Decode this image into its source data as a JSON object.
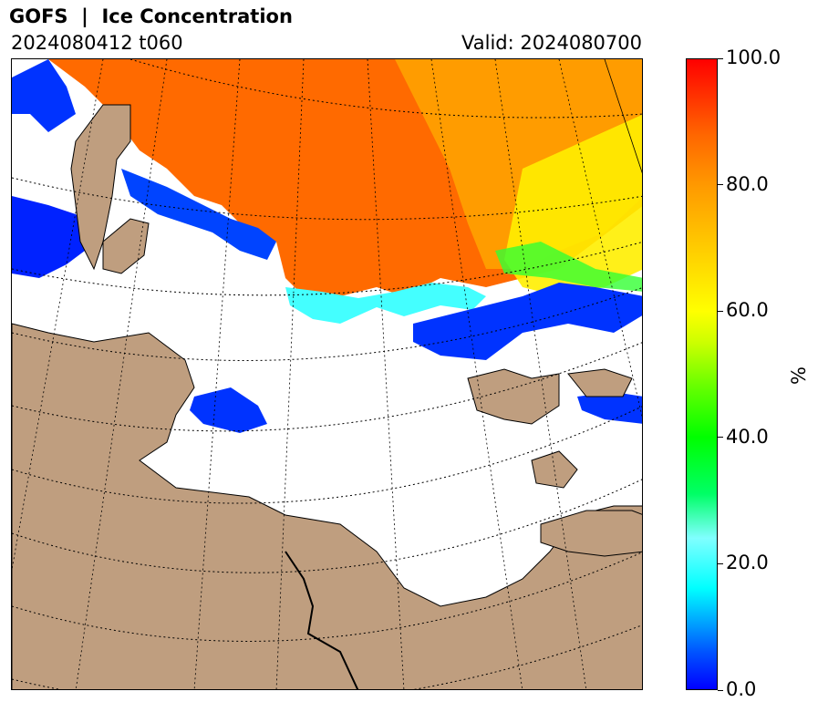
{
  "header": {
    "title": "GOFS  |  Ice Concentration",
    "run": "2024080412 t060",
    "valid": "Valid: 2024080700"
  },
  "colors": {
    "land": "#bf9e7f",
    "open_water": "#ffffff",
    "graticule": "#000000"
  },
  "chart_data": {
    "type": "heatmap",
    "title": "GOFS  |  Ice Concentration",
    "variable": "Ice Concentration",
    "colorbar": {
      "label": "%",
      "range": [
        0,
        100
      ],
      "ticks": [
        0,
        20,
        40,
        60,
        80,
        100
      ],
      "tick_labels": [
        "0.0",
        "20.0",
        "40.0",
        "60.0",
        "80.0",
        "100.0"
      ],
      "colormap": "jet-like (blue → cyan → green → yellow → orange → red)"
    },
    "projection": "polar stereographic, dotted graticule",
    "grid": true
  }
}
